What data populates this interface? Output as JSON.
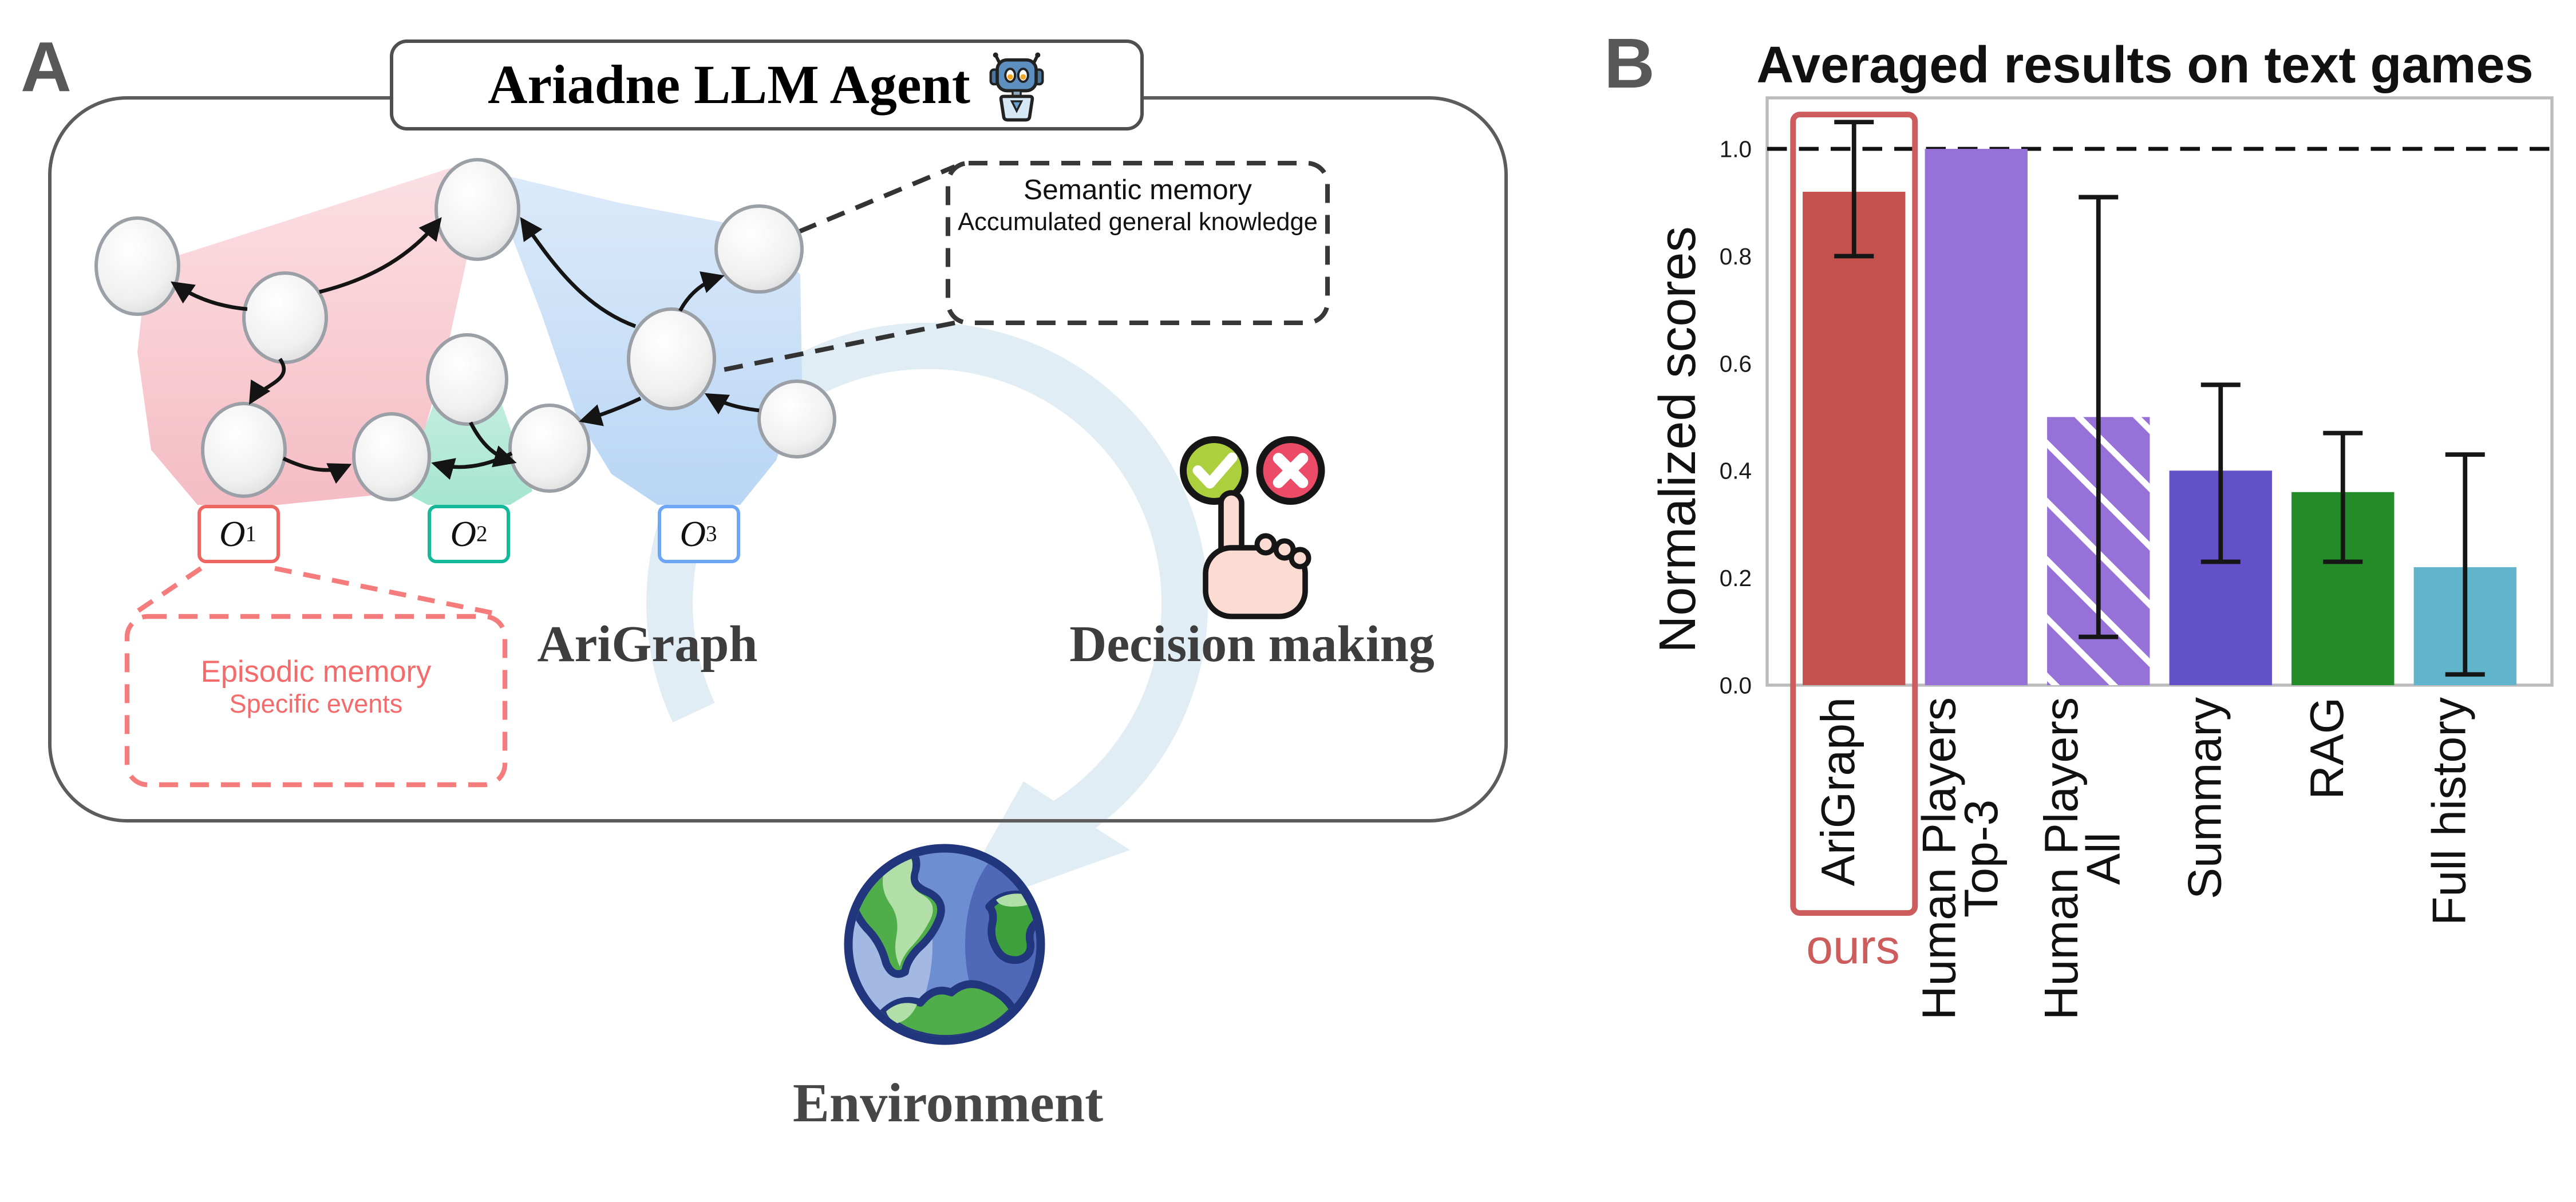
{
  "panel_a": {
    "label": "A",
    "agent_title": "Ariadne LLM Agent",
    "graph_title": "AriGraph",
    "decision_title": "Decision making",
    "environment_title": "Environment",
    "semantic_memory": {
      "title": "Semantic memory",
      "subtitle": "Accumulated general knowledge"
    },
    "episodic_memory": {
      "title": "Episodic memory",
      "subtitle": "Specific events"
    },
    "observations": [
      {
        "base": "O",
        "sub": "1",
        "color": "#ee6662"
      },
      {
        "base": "O",
        "sub": "2",
        "color": "#13b998"
      },
      {
        "base": "O",
        "sub": "3",
        "color": "#6ea5f5"
      }
    ],
    "colors": {
      "episodic_accent": "#f56b6b",
      "pink_blob": "#f5bcc4",
      "teal_blob": "#a5e5d0",
      "blue_blob": "#b9d6f4",
      "cycle_arrow": "#e0edf4",
      "check_green": "#accf3e",
      "cross_red": "#ec4b68"
    },
    "icons": {
      "robot": "robot-icon",
      "approve": "check-icon",
      "reject": "cross-icon",
      "hand": "pointing-hand-icon",
      "globe": "earth-globe-icon"
    }
  },
  "panel_b": {
    "label": "B"
  },
  "chart_data": {
    "type": "bar",
    "title": "Averaged results on text games",
    "xlabel": "",
    "ylabel": "Normalized scores",
    "ylim": [
      0,
      1.09
    ],
    "yticks": [
      0.0,
      0.2,
      0.4,
      0.6,
      0.8,
      1.0
    ],
    "reference_line": 1.0,
    "grid": false,
    "legend": null,
    "categories": [
      "AriGraph",
      "Human Players\nTop-3",
      "Human Players\nAll",
      "Summary",
      "RAG",
      "Full history"
    ],
    "values": [
      0.92,
      1.0,
      0.5,
      0.4,
      0.36,
      0.22
    ],
    "error_low": [
      0.8,
      null,
      0.09,
      0.23,
      0.23,
      0.02
    ],
    "error_high": [
      1.05,
      null,
      0.91,
      0.56,
      0.47,
      0.43
    ],
    "colors": [
      "#c4514e",
      "#9671d8",
      "#9671d8",
      "#6351c9",
      "#238b27",
      "#60b5cc"
    ],
    "hatch": [
      false,
      false,
      true,
      false,
      false,
      false
    ],
    "highlight": {
      "index": 0,
      "label": "ours",
      "color": "#cd5c5c"
    }
  }
}
